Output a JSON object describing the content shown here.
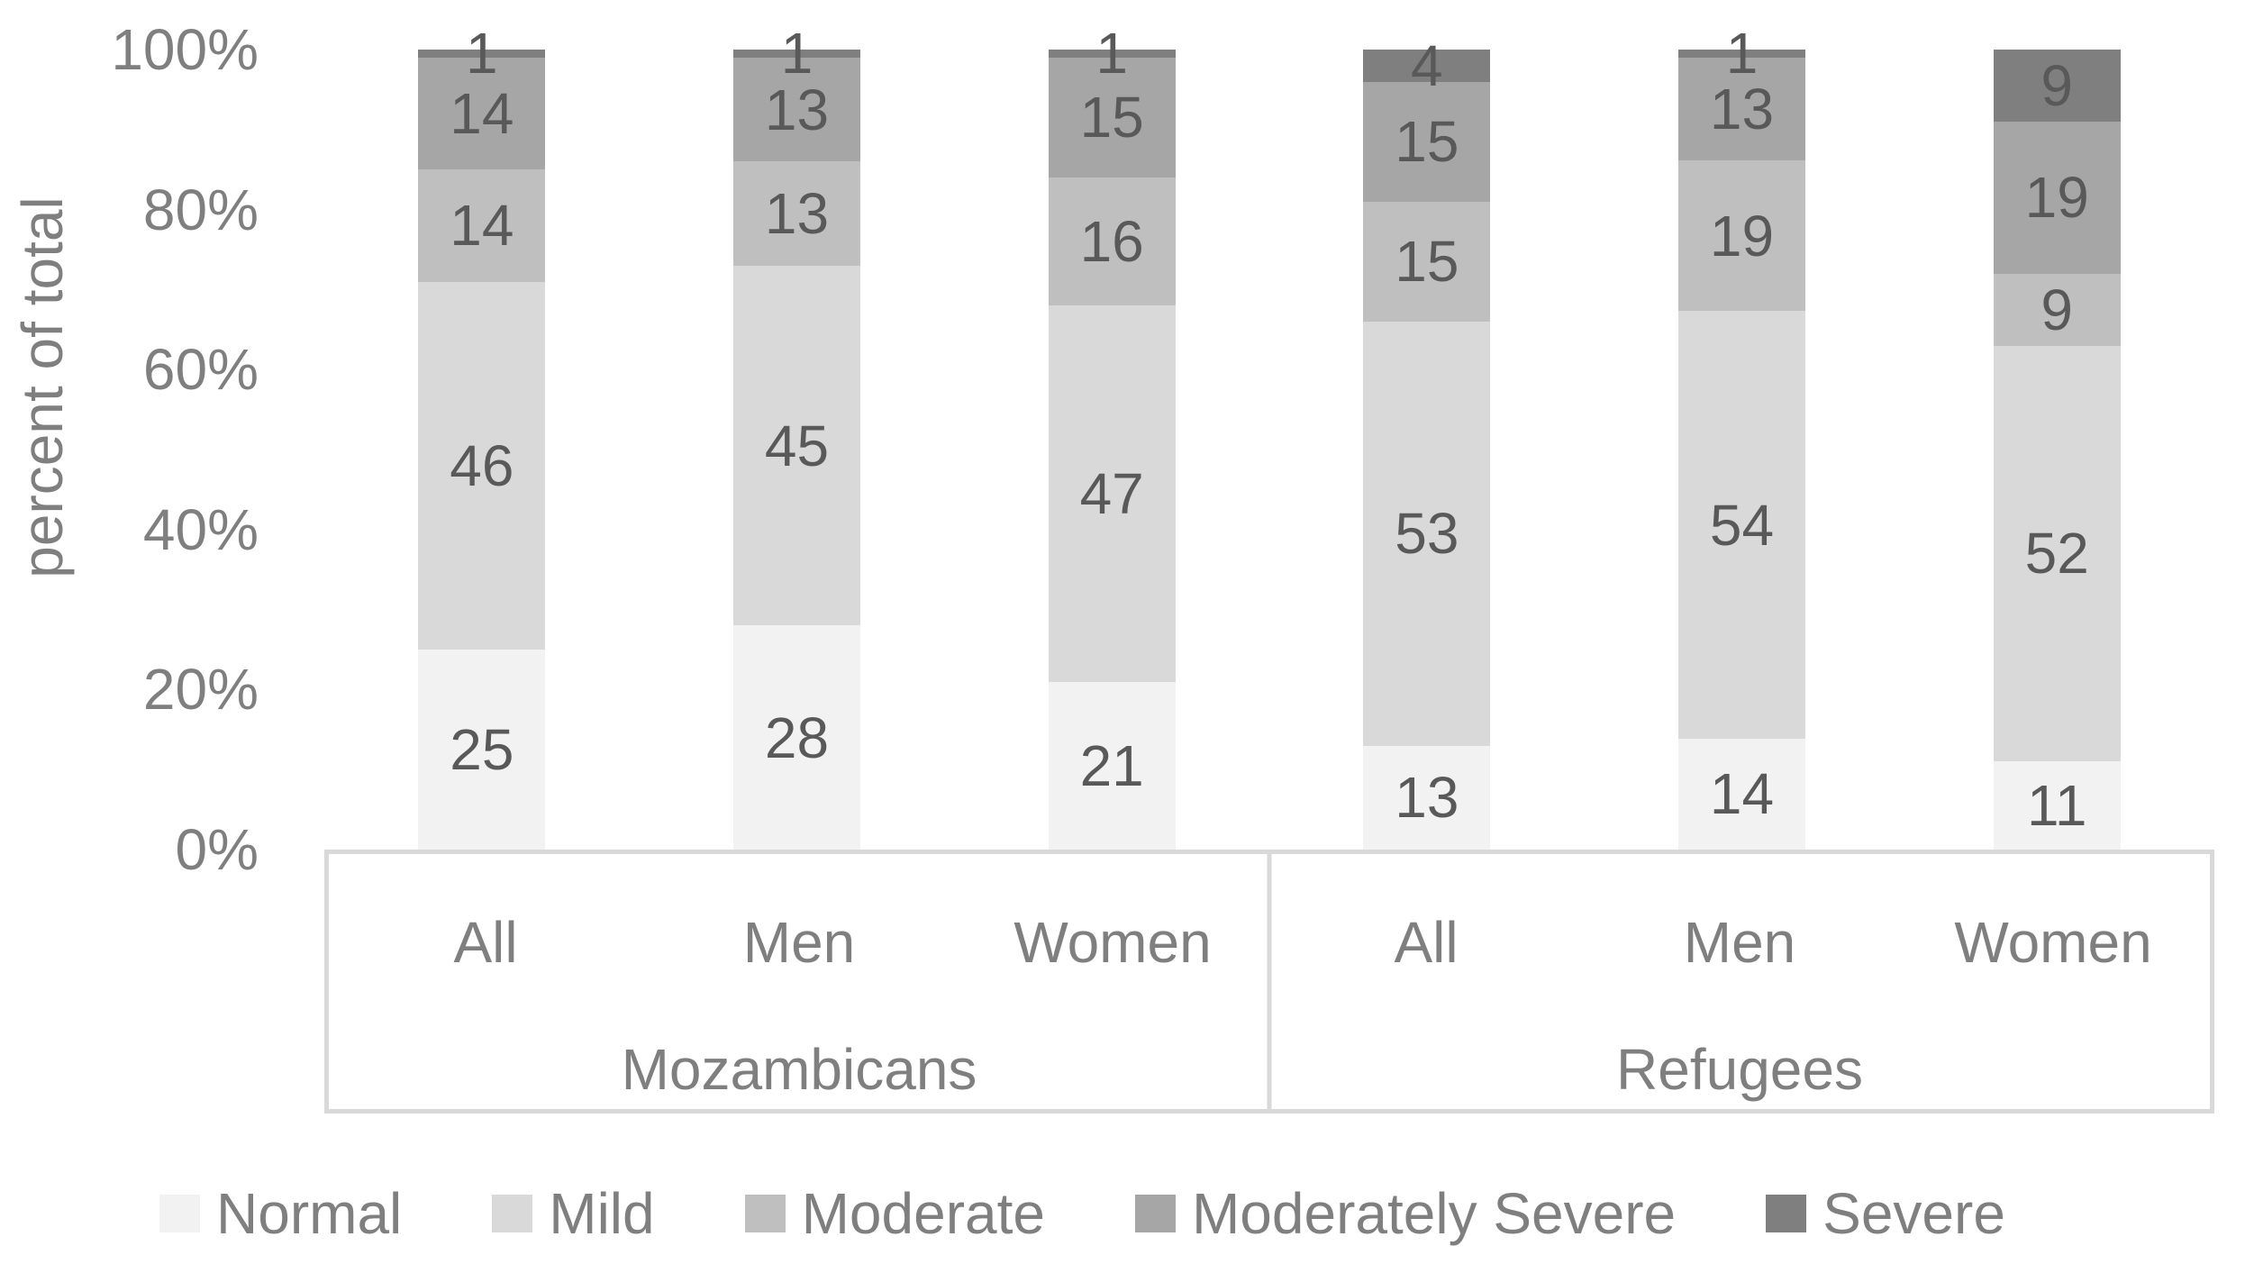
{
  "chart_data": {
    "type": "bar",
    "stacked": true,
    "units": "percent",
    "title": "",
    "ylabel": "percent of total",
    "xlabel": "",
    "ylim": [
      0,
      100
    ],
    "grid": false,
    "legend_position": "bottom",
    "yticks": [
      "100%",
      "80%",
      "60%",
      "40%",
      "20%",
      "0%"
    ],
    "groups": [
      {
        "label": "Mozambicans",
        "categories": [
          "All",
          "Men",
          "Women"
        ]
      },
      {
        "label": "Refugees",
        "categories": [
          "All",
          "Men",
          "Women"
        ]
      }
    ],
    "bar_order": [
      "Mozambicans All",
      "Mozambicans Men",
      "Mozambicans Women",
      "Refugees All",
      "Refugees Men",
      "Refugees Women"
    ],
    "series": [
      {
        "name": "Normal",
        "color": "#f2f2f2",
        "values": [
          25,
          28,
          21,
          13,
          14,
          11
        ]
      },
      {
        "name": "Mild",
        "color": "#d9d9d9",
        "values": [
          46,
          45,
          47,
          53,
          54,
          52
        ]
      },
      {
        "name": "Moderate",
        "color": "#bfbfbf",
        "values": [
          14,
          13,
          16,
          15,
          19,
          9
        ]
      },
      {
        "name": "Moderately Severe",
        "color": "#a6a6a6",
        "values": [
          14,
          13,
          15,
          15,
          13,
          19
        ]
      },
      {
        "name": "Severe",
        "color": "#7f7f7f",
        "values": [
          1,
          1,
          1,
          4,
          1,
          9
        ]
      }
    ]
  },
  "colors": {
    "data_label": "#595959",
    "axis_text": "#7f7f7f",
    "frame": "#d9d9d9",
    "background": "#ffffff"
  }
}
